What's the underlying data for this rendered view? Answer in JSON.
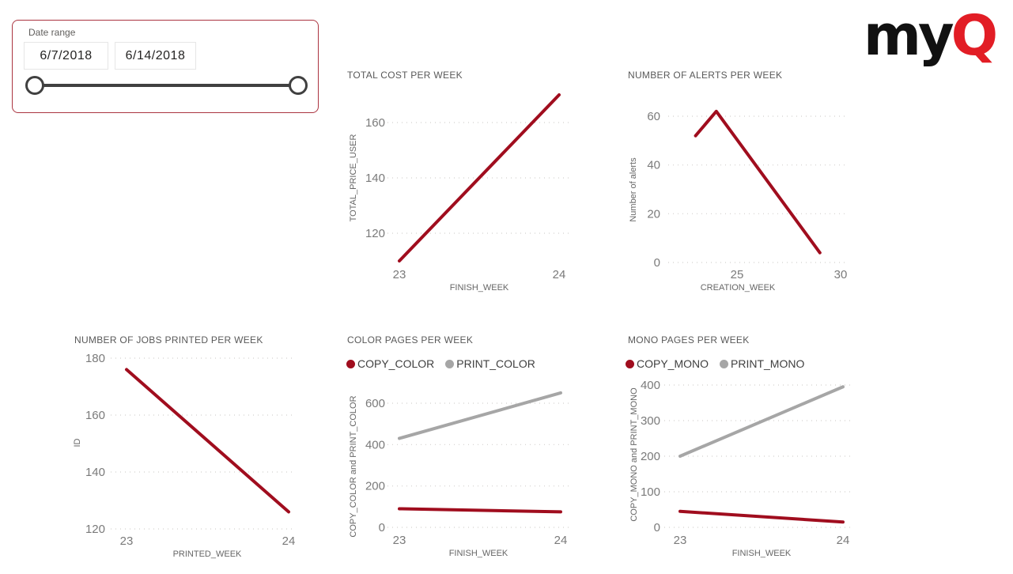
{
  "brand": {
    "logo_text": "my",
    "logo_accent": "Q",
    "accent_color": "#e21d25",
    "text_color": "#111111"
  },
  "slicer": {
    "label": "Date range",
    "start_date": "6/7/2018",
    "end_date": "6/14/2018",
    "border_color": "#ab3440"
  },
  "colors": {
    "series_red": "#a00d1e",
    "series_gray": "#a6a6a6"
  },
  "chart_data": [
    {
      "type": "line",
      "title": "TOTAL COST PER WEEK",
      "xlabel": "FINISH_WEEK",
      "ylabel": "TOTAL_PRICE_USER",
      "x_ticks": [
        23,
        24
      ],
      "y_ticks": [
        120,
        140,
        160
      ],
      "xlim": [
        23,
        24
      ],
      "ylim": [
        108,
        170
      ],
      "grid": true,
      "legend_position": "none",
      "series": [
        {
          "name": "TOTAL_PRICE_USER",
          "color": "#a00d1e",
          "x": [
            23,
            24
          ],
          "y": [
            110,
            170
          ]
        }
      ]
    },
    {
      "type": "line",
      "title": "NUMBER OF ALERTS PER WEEK",
      "xlabel": "CREATION_WEEK",
      "ylabel": "Number of alerts",
      "x_ticks": [
        25,
        30
      ],
      "y_ticks": [
        0,
        20,
        40,
        60
      ],
      "xlim": [
        22.7,
        30.3
      ],
      "ylim": [
        0,
        65
      ],
      "grid": true,
      "legend_position": "none",
      "series": [
        {
          "name": "Number of alerts",
          "color": "#a00d1e",
          "x": [
            23,
            24,
            29
          ],
          "y": [
            52,
            62,
            4
          ]
        }
      ]
    },
    {
      "type": "line",
      "title": "NUMBER OF JOBS PRINTED PER WEEK",
      "xlabel": "PRINTED_WEEK",
      "ylabel": "ID",
      "x_ticks": [
        23,
        24
      ],
      "y_ticks": [
        120,
        140,
        160,
        180
      ],
      "xlim": [
        23,
        24
      ],
      "ylim": [
        118,
        180
      ],
      "grid": true,
      "legend_position": "none",
      "series": [
        {
          "name": "ID",
          "color": "#a00d1e",
          "x": [
            23,
            24
          ],
          "y": [
            176,
            126
          ]
        }
      ]
    },
    {
      "type": "line",
      "title": "COLOR PAGES PER WEEK",
      "xlabel": "FINISH_WEEK",
      "ylabel": "COPY_COLOR and PRINT_COLOR",
      "x_ticks": [
        23,
        24
      ],
      "y_ticks": [
        0,
        200,
        400,
        600
      ],
      "xlim": [
        23,
        24
      ],
      "ylim": [
        0,
        680
      ],
      "grid": true,
      "legend_position": "top",
      "series": [
        {
          "name": "COPY_COLOR",
          "color": "#a00d1e",
          "x": [
            23,
            24
          ],
          "y": [
            90,
            75
          ]
        },
        {
          "name": "PRINT_COLOR",
          "color": "#a6a6a6",
          "x": [
            23,
            24
          ],
          "y": [
            430,
            650
          ]
        }
      ]
    },
    {
      "type": "line",
      "title": "MONO PAGES PER WEEK",
      "xlabel": "FINISH_WEEK",
      "ylabel": "COPY_MONO and PRINT_MONO",
      "x_ticks": [
        23,
        24
      ],
      "y_ticks": [
        0,
        100,
        200,
        300,
        400
      ],
      "xlim": [
        23,
        24
      ],
      "ylim": [
        0,
        420
      ],
      "grid": true,
      "legend_position": "top",
      "series": [
        {
          "name": "COPY_MONO",
          "color": "#a00d1e",
          "x": [
            23,
            24
          ],
          "y": [
            45,
            15
          ]
        },
        {
          "name": "PRINT_MONO",
          "color": "#a6a6a6",
          "x": [
            23,
            24
          ],
          "y": [
            200,
            395
          ]
        }
      ]
    }
  ]
}
